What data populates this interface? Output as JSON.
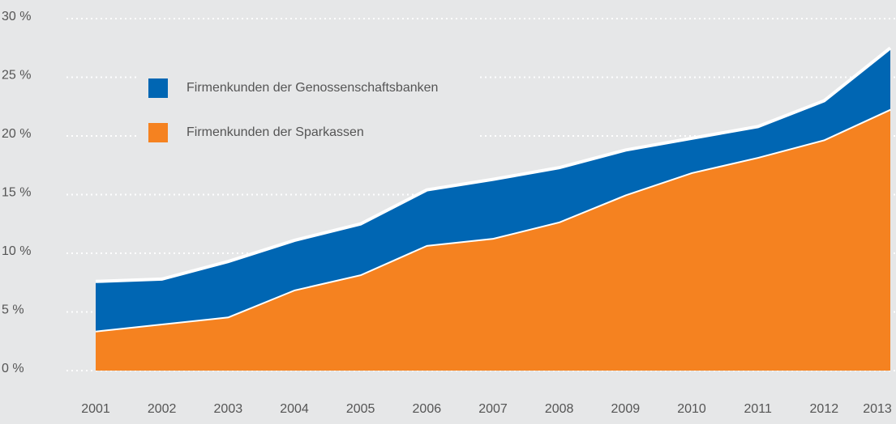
{
  "chart_data": {
    "type": "stacked_area",
    "categories": [
      "2001",
      "2002",
      "2003",
      "2004",
      "2005",
      "2006",
      "2007",
      "2008",
      "2009",
      "2010",
      "2011",
      "2012",
      "2013"
    ],
    "series": [
      {
        "name": "Firmenkunden der Sparkassen",
        "color": "#f58220",
        "values": [
          3.4,
          4.0,
          4.6,
          6.9,
          8.2,
          10.7,
          11.3,
          12.7,
          15.0,
          16.9,
          18.2,
          19.7,
          22.3
        ]
      },
      {
        "name": "Firmenkunden der Genossenschaftsbanken",
        "color": "#0066b3",
        "values": [
          4.2,
          3.8,
          4.7,
          4.2,
          4.3,
          4.7,
          5.0,
          4.6,
          3.8,
          2.9,
          2.6,
          3.3,
          5.2
        ]
      }
    ],
    "ylim": [
      0,
      30
    ],
    "yticks": [
      {
        "value": 0,
        "label": "0 %"
      },
      {
        "value": 5,
        "label": "5 %"
      },
      {
        "value": 10,
        "label": "10 %"
      },
      {
        "value": 15,
        "label": "15 %"
      },
      {
        "value": 20,
        "label": "20 %"
      },
      {
        "value": 25,
        "label": "25 %"
      },
      {
        "value": 30,
        "label": "30 %"
      }
    ],
    "grid": true
  }
}
